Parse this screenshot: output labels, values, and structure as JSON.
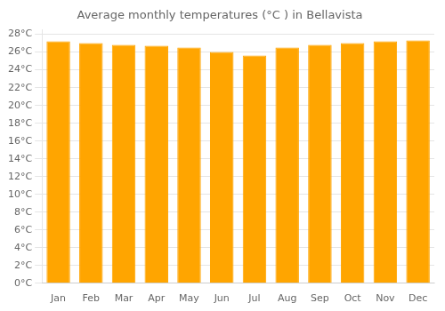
{
  "chart_data": {
    "type": "bar",
    "title": "Average monthly temperatures (°C ) in Bellavista",
    "categories": [
      "Jan",
      "Feb",
      "Mar",
      "Apr",
      "May",
      "Jun",
      "Jul",
      "Aug",
      "Sep",
      "Oct",
      "Nov",
      "Dec"
    ],
    "values": [
      27.2,
      27.0,
      26.8,
      26.7,
      26.5,
      26.0,
      25.6,
      26.5,
      26.8,
      27.0,
      27.2,
      27.3
    ],
    "color": "#FFA500",
    "ylim": [
      0,
      28.5
    ],
    "yticks": [
      {
        "value": 0,
        "label": "0°C"
      },
      {
        "value": 2,
        "label": "2°C"
      },
      {
        "value": 4,
        "label": "4°C"
      },
      {
        "value": 6,
        "label": "6°C"
      },
      {
        "value": 8,
        "label": "8°C"
      },
      {
        "value": 10,
        "label": "10°C"
      },
      {
        "value": 12,
        "label": "12°C"
      },
      {
        "value": 14,
        "label": "14°C"
      },
      {
        "value": 16,
        "label": "16°C"
      },
      {
        "value": 18,
        "label": "18°C"
      },
      {
        "value": 20,
        "label": "20°C"
      },
      {
        "value": 22,
        "label": "22°C"
      },
      {
        "value": 24,
        "label": "24°C"
      },
      {
        "value": 26,
        "label": "26°C"
      },
      {
        "value": 28,
        "label": "28°C"
      }
    ],
    "grid": true
  }
}
